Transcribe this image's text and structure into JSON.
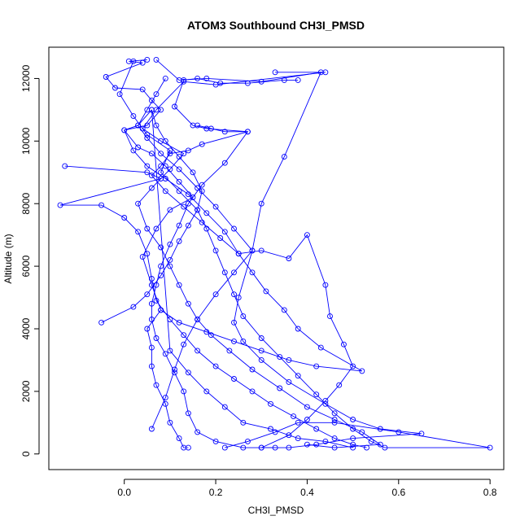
{
  "chart_data": {
    "type": "line",
    "title": "ATOM3 Southbound CH3I_PMSD",
    "xlabel": "CH3I_PMSD",
    "ylabel": "Altitude (m)",
    "xlim": [
      -0.165,
      0.83
    ],
    "ylim": [
      -500,
      13000
    ],
    "x_ticks": [
      0.0,
      0.2,
      0.4,
      0.6,
      0.8
    ],
    "x_tick_labels": [
      "0.0",
      "0.2",
      "0.4",
      "0.6",
      "0.8"
    ],
    "y_ticks": [
      0,
      2000,
      4000,
      6000,
      8000,
      10000,
      12000
    ],
    "y_tick_labels": [
      "0",
      "2000",
      "4000",
      "6000",
      "8000",
      "10000",
      "12000"
    ],
    "grid": false,
    "marker": "open-circle",
    "series_color": "#0000ff",
    "series": [
      {
        "points": [
          [
            0.05,
            12600
          ],
          [
            0.01,
            12550
          ],
          [
            0.04,
            12500
          ],
          [
            -0.04,
            12050
          ],
          [
            -0.02,
            11700
          ],
          [
            0.04,
            11650
          ],
          [
            0.06,
            11300
          ],
          [
            0.08,
            11000
          ],
          [
            0.05,
            10500
          ],
          [
            0.0,
            10350
          ],
          [
            0.03,
            9800
          ],
          [
            0.06,
            9600
          ],
          [
            0.09,
            9200
          ],
          [
            0.12,
            8700
          ],
          [
            0.15,
            8200
          ],
          [
            0.1,
            7800
          ],
          [
            0.07,
            7200
          ],
          [
            0.04,
            6300
          ],
          [
            0.06,
            5400
          ],
          [
            0.08,
            4600
          ],
          [
            0.05,
            4000
          ],
          [
            0.06,
            3400
          ],
          [
            0.06,
            2800
          ],
          [
            0.07,
            2200
          ],
          [
            0.09,
            1600
          ],
          [
            0.1,
            1000
          ],
          [
            0.12,
            500
          ],
          [
            0.13,
            200
          ],
          [
            0.14,
            200
          ]
        ]
      },
      {
        "points": [
          [
            0.02,
            12550
          ],
          [
            -0.01,
            11500
          ],
          [
            0.02,
            10800
          ],
          [
            0.05,
            10200
          ],
          [
            0.1,
            9700
          ],
          [
            0.08,
            9000
          ],
          [
            0.12,
            8400
          ],
          [
            0.16,
            7800
          ],
          [
            0.18,
            7200
          ],
          [
            0.2,
            6500
          ],
          [
            0.22,
            5800
          ],
          [
            0.24,
            5100
          ],
          [
            0.26,
            4400
          ],
          [
            0.3,
            3700
          ],
          [
            0.34,
            3100
          ],
          [
            0.38,
            2500
          ],
          [
            0.42,
            1900
          ],
          [
            0.46,
            1300
          ],
          [
            0.5,
            800
          ],
          [
            0.54,
            400
          ],
          [
            0.57,
            200
          ],
          [
            0.8,
            200
          ],
          [
            0.6,
            700
          ],
          [
            0.46,
            1000
          ],
          [
            0.38,
            1000
          ],
          [
            0.33,
            700
          ],
          [
            0.27,
            400
          ],
          [
            0.22,
            200
          ]
        ]
      },
      {
        "points": [
          [
            0.07,
            12600
          ],
          [
            0.12,
            11950
          ],
          [
            0.18,
            12000
          ],
          [
            0.3,
            11900
          ],
          [
            0.43,
            12200
          ],
          [
            0.35,
            9500
          ],
          [
            0.3,
            8000
          ],
          [
            0.28,
            6500
          ],
          [
            0.25,
            5000
          ],
          [
            0.24,
            4200
          ],
          [
            0.26,
            3600
          ],
          [
            0.3,
            3000
          ],
          [
            0.36,
            2300
          ],
          [
            0.44,
            1600
          ],
          [
            0.5,
            1100
          ],
          [
            0.56,
            800
          ],
          [
            0.65,
            650
          ],
          [
            0.5,
            500
          ],
          [
            0.42,
            300
          ],
          [
            0.36,
            200
          ],
          [
            0.3,
            200
          ]
        ]
      },
      {
        "points": [
          [
            0.33,
            12200
          ],
          [
            0.44,
            12200
          ],
          [
            0.2,
            11800
          ],
          [
            0.13,
            11900
          ],
          [
            0.07,
            11000
          ],
          [
            0.04,
            10400
          ],
          [
            0.08,
            10000
          ],
          [
            0.13,
            9600
          ],
          [
            0.1,
            9100
          ],
          [
            0.06,
            8500
          ],
          [
            0.03,
            8000
          ],
          [
            0.05,
            7200
          ],
          [
            0.08,
            6600
          ],
          [
            0.1,
            6000
          ],
          [
            0.12,
            5400
          ],
          [
            0.14,
            4800
          ],
          [
            0.16,
            4300
          ],
          [
            0.19,
            3800
          ],
          [
            0.23,
            3300
          ],
          [
            0.28,
            2700
          ],
          [
            0.34,
            2100
          ],
          [
            0.4,
            1500
          ],
          [
            0.46,
            1100
          ],
          [
            0.52,
            700
          ],
          [
            0.56,
            300
          ],
          [
            0.46,
            200
          ],
          [
            0.4,
            300
          ]
        ]
      },
      {
        "points": [
          [
            0.38,
            11950
          ],
          [
            0.35,
            11950
          ],
          [
            0.27,
            11850
          ],
          [
            0.21,
            11850
          ],
          [
            0.16,
            12000
          ],
          [
            0.13,
            11950
          ],
          [
            0.11,
            11100
          ],
          [
            0.15,
            10500
          ],
          [
            0.18,
            10400
          ],
          [
            0.27,
            10300
          ],
          [
            0.22,
            9300
          ],
          [
            0.17,
            8600
          ],
          [
            0.14,
            8000
          ],
          [
            0.12,
            7300
          ],
          [
            0.1,
            6700
          ],
          [
            0.08,
            6000
          ],
          [
            0.07,
            5400
          ],
          [
            0.06,
            4800
          ],
          [
            0.06,
            4300
          ],
          [
            0.07,
            3700
          ],
          [
            0.09,
            3200
          ],
          [
            0.11,
            2600
          ],
          [
            0.13,
            2000
          ],
          [
            0.14,
            1300
          ],
          [
            0.16,
            700
          ],
          [
            0.2,
            400
          ],
          [
            0.26,
            200
          ],
          [
            0.33,
            200
          ]
        ]
      },
      {
        "points": [
          [
            0.16,
            10500
          ],
          [
            0.19,
            10400
          ],
          [
            0.22,
            10300
          ],
          [
            0.27,
            10300
          ],
          [
            0.17,
            9900
          ],
          [
            0.14,
            9700
          ],
          [
            0.1,
            9600
          ],
          [
            0.08,
            9200
          ],
          [
            0.06,
            8900
          ],
          [
            0.09,
            8400
          ],
          [
            0.13,
            7900
          ],
          [
            0.17,
            7400
          ],
          [
            0.21,
            6900
          ],
          [
            0.25,
            6400
          ],
          [
            0.28,
            5800
          ],
          [
            0.31,
            5200
          ],
          [
            0.35,
            4600
          ],
          [
            0.38,
            4000
          ],
          [
            0.43,
            3400
          ],
          [
            0.52,
            2650
          ],
          [
            0.42,
            2800
          ],
          [
            0.36,
            3000
          ],
          [
            0.3,
            3300
          ],
          [
            0.24,
            3600
          ],
          [
            0.18,
            3900
          ],
          [
            0.12,
            4200
          ],
          [
            0.08,
            4600
          ]
        ]
      },
      {
        "points": [
          [
            0.06,
            11000
          ],
          [
            0.03,
            10500
          ],
          [
            0.0,
            10350
          ],
          [
            0.02,
            9700
          ],
          [
            0.05,
            9200
          ],
          [
            0.09,
            8800
          ],
          [
            0.14,
            8300
          ],
          [
            0.18,
            7700
          ],
          [
            0.22,
            7100
          ],
          [
            0.25,
            6400
          ],
          [
            0.3,
            6500
          ],
          [
            0.36,
            6250
          ],
          [
            0.4,
            7000
          ],
          [
            0.44,
            5400
          ],
          [
            0.45,
            4400
          ],
          [
            0.48,
            3500
          ],
          [
            0.5,
            2800
          ],
          [
            0.47,
            2200
          ],
          [
            0.44,
            1700
          ],
          [
            0.4,
            1100
          ],
          [
            0.36,
            600
          ],
          [
            0.3,
            200
          ]
        ]
      },
      {
        "points": [
          [
            -0.13,
            9200
          ],
          [
            0.05,
            9000
          ],
          [
            0.08,
            8800
          ],
          [
            -0.14,
            7950
          ],
          [
            -0.05,
            7950
          ],
          [
            0.0,
            7550
          ],
          [
            0.03,
            7100
          ],
          [
            0.05,
            6400
          ],
          [
            0.06,
            5600
          ],
          [
            0.07,
            4900
          ],
          [
            0.1,
            4300
          ],
          [
            0.13,
            3800
          ],
          [
            0.16,
            3300
          ],
          [
            0.2,
            2800
          ],
          [
            0.24,
            2400
          ],
          [
            0.28,
            2000
          ],
          [
            0.32,
            1600
          ],
          [
            0.37,
            1200
          ],
          [
            0.42,
            800
          ],
          [
            0.46,
            500
          ],
          [
            0.5,
            300
          ],
          [
            0.53,
            200
          ]
        ]
      },
      {
        "points": [
          [
            -0.05,
            4200
          ],
          [
            0.02,
            4700
          ],
          [
            0.05,
            5100
          ],
          [
            0.08,
            5700
          ],
          [
            0.1,
            6200
          ],
          [
            0.12,
            6800
          ],
          [
            0.14,
            7300
          ],
          [
            0.16,
            7800
          ],
          [
            0.17,
            8400
          ],
          [
            0.15,
            9000
          ],
          [
            0.12,
            9500
          ],
          [
            0.09,
            10000
          ],
          [
            0.07,
            10500
          ],
          [
            0.06,
            11000
          ],
          [
            0.1,
            3300
          ],
          [
            0.14,
            2600
          ],
          [
            0.18,
            2000
          ],
          [
            0.22,
            1500
          ],
          [
            0.26,
            1000
          ],
          [
            0.32,
            800
          ],
          [
            0.38,
            500
          ],
          [
            0.44,
            400
          ],
          [
            0.5,
            200
          ]
        ]
      },
      {
        "points": [
          [
            0.06,
            800
          ],
          [
            0.09,
            1800
          ],
          [
            0.11,
            2700
          ],
          [
            0.13,
            3500
          ],
          [
            0.16,
            4300
          ],
          [
            0.2,
            5100
          ],
          [
            0.24,
            5800
          ],
          [
            0.28,
            6500
          ],
          [
            0.24,
            7200
          ],
          [
            0.2,
            7900
          ],
          [
            0.16,
            8500
          ],
          [
            0.12,
            9100
          ],
          [
            0.08,
            9600
          ],
          [
            0.05,
            10100
          ],
          [
            0.03,
            10500
          ],
          [
            0.05,
            11000
          ],
          [
            0.07,
            11500
          ],
          [
            0.09,
            12000
          ]
        ]
      }
    ]
  }
}
